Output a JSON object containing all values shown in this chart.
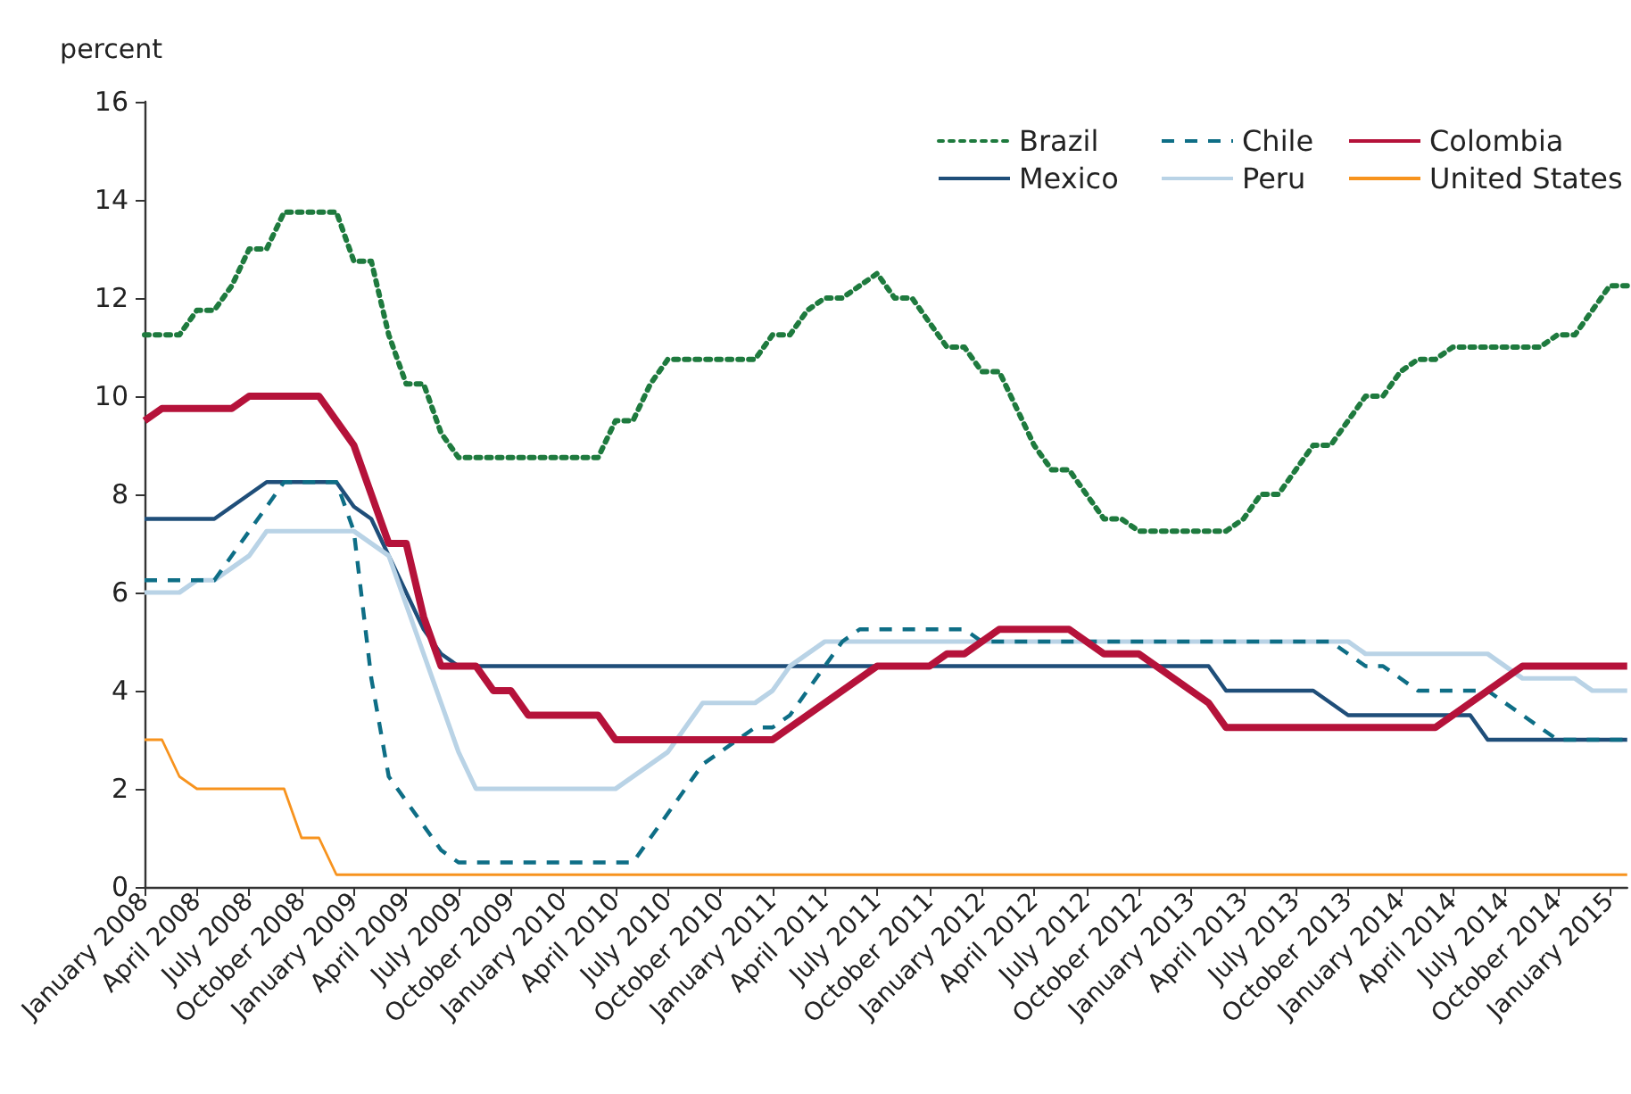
{
  "chart_data": {
    "type": "line",
    "ylabel": "percent",
    "ylim": [
      0,
      16
    ],
    "yticks": [
      0,
      2,
      4,
      6,
      8,
      10,
      12,
      14,
      16
    ],
    "grid": false,
    "legend": "top right",
    "marker": "none",
    "categories": [
      "January 2008",
      null,
      null,
      "April 2008",
      null,
      null,
      "July 2008",
      null,
      null,
      "October 2008",
      null,
      null,
      "January 2009",
      null,
      null,
      "April 2009",
      null,
      null,
      "July 2009",
      null,
      null,
      "October 2009",
      null,
      null,
      "January 2010",
      null,
      null,
      "April 2010",
      null,
      null,
      "July 2010",
      null,
      null,
      "October 2010",
      null,
      null,
      "January 2011",
      null,
      null,
      "April 2011",
      null,
      null,
      "July 2011",
      null,
      null,
      "October 2011",
      null,
      null,
      "January 2012",
      null,
      null,
      "April 2012",
      null,
      null,
      "July 2012",
      null,
      null,
      "October 2012",
      null,
      null,
      "January 2013",
      null,
      null,
      "April 2013",
      null,
      null,
      "July 2013",
      null,
      null,
      "October 2013",
      null,
      null,
      "January 2014",
      null,
      null,
      "April 2014",
      null,
      null,
      "July 2014",
      null,
      null,
      "October 2014",
      null,
      null,
      "January 2015",
      null
    ],
    "series": [
      {
        "name": "Brazil",
        "color": "#1e7a3e",
        "line_style": "dotted",
        "values": [
          11.25,
          11.25,
          11.25,
          11.75,
          11.75,
          12.25,
          13,
          13,
          13.75,
          13.75,
          13.75,
          13.75,
          12.75,
          12.75,
          11.25,
          10.25,
          10.25,
          9.25,
          8.75,
          8.75,
          8.75,
          8.75,
          8.75,
          8.75,
          8.75,
          8.75,
          8.75,
          9.5,
          9.5,
          10.25,
          10.75,
          10.75,
          10.75,
          10.75,
          10.75,
          10.75,
          11.25,
          11.25,
          11.75,
          12,
          12,
          12.25,
          12.5,
          12,
          12,
          11.5,
          11,
          11,
          10.5,
          10.5,
          9.75,
          9,
          8.5,
          8.5,
          8,
          7.5,
          7.5,
          7.25,
          7.25,
          7.25,
          7.25,
          7.25,
          7.25,
          7.5,
          8,
          8,
          8.5,
          9,
          9,
          9.5,
          10,
          10,
          10.5,
          10.75,
          10.75,
          11,
          11,
          11,
          11,
          11,
          11,
          11.25,
          11.25,
          11.75,
          12.25,
          12.25
        ]
      },
      {
        "name": "Chile",
        "color": "#0e6e86",
        "line_style": "dashed",
        "values": [
          6.25,
          6.25,
          6.25,
          6.25,
          6.25,
          6.75,
          7.25,
          7.75,
          8.25,
          8.25,
          8.25,
          8.25,
          7.25,
          4.25,
          2.25,
          1.75,
          1.25,
          0.75,
          0.5,
          0.5,
          0.5,
          0.5,
          0.5,
          0.5,
          0.5,
          0.5,
          0.5,
          0.5,
          0.5,
          1,
          1.5,
          2,
          2.5,
          2.75,
          3,
          3.25,
          3.25,
          3.5,
          4,
          4.5,
          5,
          5.25,
          5.25,
          5.25,
          5.25,
          5.25,
          5.25,
          5.25,
          5,
          5,
          5,
          5,
          5,
          5,
          5,
          5,
          5,
          5,
          5,
          5,
          5,
          5,
          5,
          5,
          5,
          5,
          5,
          5,
          5,
          4.75,
          4.5,
          4.5,
          4.25,
          4,
          4,
          4,
          4,
          4,
          3.75,
          3.5,
          3.25,
          3,
          3,
          3,
          3,
          3
        ]
      },
      {
        "name": "Colombia",
        "color": "#b5123a",
        "line_style": "solid",
        "values": [
          9.5,
          9.75,
          9.75,
          9.75,
          9.75,
          9.75,
          10,
          10,
          10,
          10,
          10,
          9.5,
          9,
          8,
          7,
          7,
          5.5,
          4.5,
          4.5,
          4.5,
          4,
          4,
          3.5,
          3.5,
          3.5,
          3.5,
          3.5,
          3,
          3,
          3,
          3,
          3,
          3,
          3,
          3,
          3,
          3,
          3.25,
          3.5,
          3.75,
          4,
          4.25,
          4.5,
          4.5,
          4.5,
          4.5,
          4.75,
          4.75,
          5,
          5.25,
          5.25,
          5.25,
          5.25,
          5.25,
          5,
          4.75,
          4.75,
          4.75,
          4.5,
          4.25,
          4,
          3.75,
          3.25,
          3.25,
          3.25,
          3.25,
          3.25,
          3.25,
          3.25,
          3.25,
          3.25,
          3.25,
          3.25,
          3.25,
          3.25,
          3.5,
          3.75,
          4,
          4.25,
          4.5,
          4.5,
          4.5,
          4.5,
          4.5,
          4.5,
          4.5
        ]
      },
      {
        "name": "Mexico",
        "color": "#1f4e79",
        "line_style": "solid",
        "values": [
          7.5,
          7.5,
          7.5,
          7.5,
          7.5,
          7.75,
          8,
          8.25,
          8.25,
          8.25,
          8.25,
          8.25,
          7.75,
          7.5,
          6.75,
          6,
          5.25,
          4.75,
          4.5,
          4.5,
          4.5,
          4.5,
          4.5,
          4.5,
          4.5,
          4.5,
          4.5,
          4.5,
          4.5,
          4.5,
          4.5,
          4.5,
          4.5,
          4.5,
          4.5,
          4.5,
          4.5,
          4.5,
          4.5,
          4.5,
          4.5,
          4.5,
          4.5,
          4.5,
          4.5,
          4.5,
          4.5,
          4.5,
          4.5,
          4.5,
          4.5,
          4.5,
          4.5,
          4.5,
          4.5,
          4.5,
          4.5,
          4.5,
          4.5,
          4.5,
          4.5,
          4.5,
          4,
          4,
          4,
          4,
          4,
          4,
          3.75,
          3.5,
          3.5,
          3.5,
          3.5,
          3.5,
          3.5,
          3.5,
          3.5,
          3,
          3,
          3,
          3,
          3,
          3,
          3,
          3,
          3
        ]
      },
      {
        "name": "Peru",
        "color": "#b9d3e6",
        "line_style": "solid",
        "values": [
          6,
          6,
          6,
          6.25,
          6.25,
          6.5,
          6.75,
          7.25,
          7.25,
          7.25,
          7.25,
          7.25,
          7.25,
          7,
          6.75,
          5.75,
          4.75,
          3.75,
          2.75,
          2,
          2,
          2,
          2,
          2,
          2,
          2,
          2,
          2,
          2.25,
          2.5,
          2.75,
          3.25,
          3.75,
          3.75,
          3.75,
          3.75,
          4,
          4.5,
          4.75,
          5,
          5,
          5,
          5,
          5,
          5,
          5,
          5,
          5,
          5,
          5,
          5,
          5,
          5,
          5,
          5,
          5,
          5,
          5,
          5,
          5,
          5,
          5,
          5,
          5,
          5,
          5,
          5,
          5,
          5,
          5,
          4.75,
          4.75,
          4.75,
          4.75,
          4.75,
          4.75,
          4.75,
          4.75,
          4.5,
          4.25,
          4.25,
          4.25,
          4.25,
          4,
          4,
          4
        ]
      },
      {
        "name": "United States",
        "color": "#f7931e",
        "line_style": "solid",
        "values": [
          3,
          3,
          2.25,
          2,
          2,
          2,
          2,
          2,
          2,
          1,
          1,
          0.25,
          0.25,
          0.25,
          0.25,
          0.25,
          0.25,
          0.25,
          0.25,
          0.25,
          0.25,
          0.25,
          0.25,
          0.25,
          0.25,
          0.25,
          0.25,
          0.25,
          0.25,
          0.25,
          0.25,
          0.25,
          0.25,
          0.25,
          0.25,
          0.25,
          0.25,
          0.25,
          0.25,
          0.25,
          0.25,
          0.25,
          0.25,
          0.25,
          0.25,
          0.25,
          0.25,
          0.25,
          0.25,
          0.25,
          0.25,
          0.25,
          0.25,
          0.25,
          0.25,
          0.25,
          0.25,
          0.25,
          0.25,
          0.25,
          0.25,
          0.25,
          0.25,
          0.25,
          0.25,
          0.25,
          0.25,
          0.25,
          0.25,
          0.25,
          0.25,
          0.25,
          0.25,
          0.25,
          0.25,
          0.25,
          0.25,
          0.25,
          0.25,
          0.25,
          0.25,
          0.25,
          0.25,
          0.25,
          0.25,
          0.25
        ]
      }
    ]
  }
}
